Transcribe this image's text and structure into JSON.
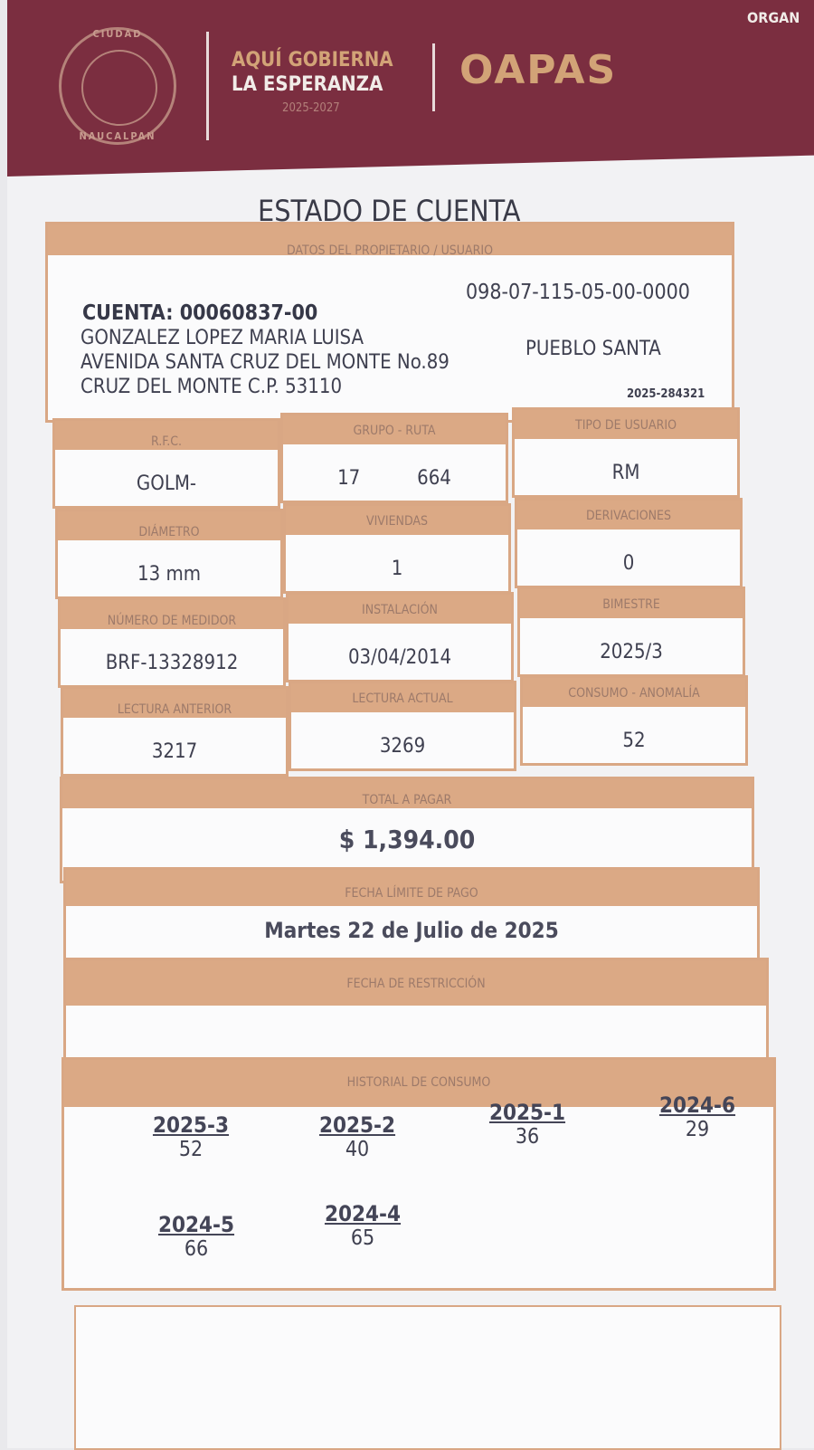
{
  "header": {
    "seal_top": "CIUDAD",
    "seal_bottom": "NAUCALPAN",
    "slogan_line1": "AQUÍ GOBIERNA",
    "slogan_line2": "LA ESPERANZA",
    "years": "2025-2027",
    "brand": "OAPAS",
    "corner": "ORGAN"
  },
  "title": "ESTADO DE CUENTA",
  "owner": {
    "section": "DATOS DEL PROPIETARIO / USUARIO",
    "account": "CUENTA: 00060837-00",
    "cadastral": "098-07-115-05-00-0000",
    "name": "GONZALEZ LOPEZ MARIA LUISA",
    "address1": "AVENIDA SANTA CRUZ DEL MONTE No.89",
    "address1b": "PUEBLO SANTA",
    "address2": "CRUZ DEL MONTE C.P. 53110",
    "folio": "2025-284321"
  },
  "fields": [
    {
      "label": "R.F.C.",
      "value": "GOLM-"
    },
    {
      "label": "GRUPO - RUTA",
      "value": "17          664"
    },
    {
      "label": "TIPO DE USUARIO",
      "value": "RM"
    },
    {
      "label": "DIÁMETRO",
      "value": "13 mm"
    },
    {
      "label": "VIVIENDAS",
      "value": "1"
    },
    {
      "label": "DERIVACIONES",
      "value": "0"
    },
    {
      "label": "NÚMERO DE MEDIDOR",
      "value": "BRF-13328912"
    },
    {
      "label": "INSTALACIÓN",
      "value": "03/04/2014"
    },
    {
      "label": "BIMESTRE",
      "value": "2025/3"
    },
    {
      "label": "LECTURA ANTERIOR",
      "value": "3217"
    },
    {
      "label": "LECTURA ACTUAL",
      "value": "3269"
    },
    {
      "label": "CONSUMO - ANOMALÍA",
      "value": "52"
    }
  ],
  "total": {
    "label": "TOTAL A PAGAR",
    "value": "$ 1,394.00"
  },
  "due": {
    "label": "FECHA LÍMITE DE PAGO",
    "value": "Martes 22 de Julio de 2025"
  },
  "restriction": {
    "label": "FECHA DE RESTRICCIÓN",
    "value": ""
  },
  "history": {
    "label": "HISTORIAL DE CONSUMO",
    "items": [
      {
        "period": "2025-3",
        "value": "52"
      },
      {
        "period": "2025-2",
        "value": "40"
      },
      {
        "period": "2025-1",
        "value": "36"
      },
      {
        "period": "2024-6",
        "value": "29"
      },
      {
        "period": "2024-5",
        "value": "66"
      },
      {
        "period": "2024-4",
        "value": "65"
      }
    ]
  },
  "colors": {
    "maroon": "#7b2e40",
    "tan": "#dba985",
    "gold": "#d2a377"
  }
}
